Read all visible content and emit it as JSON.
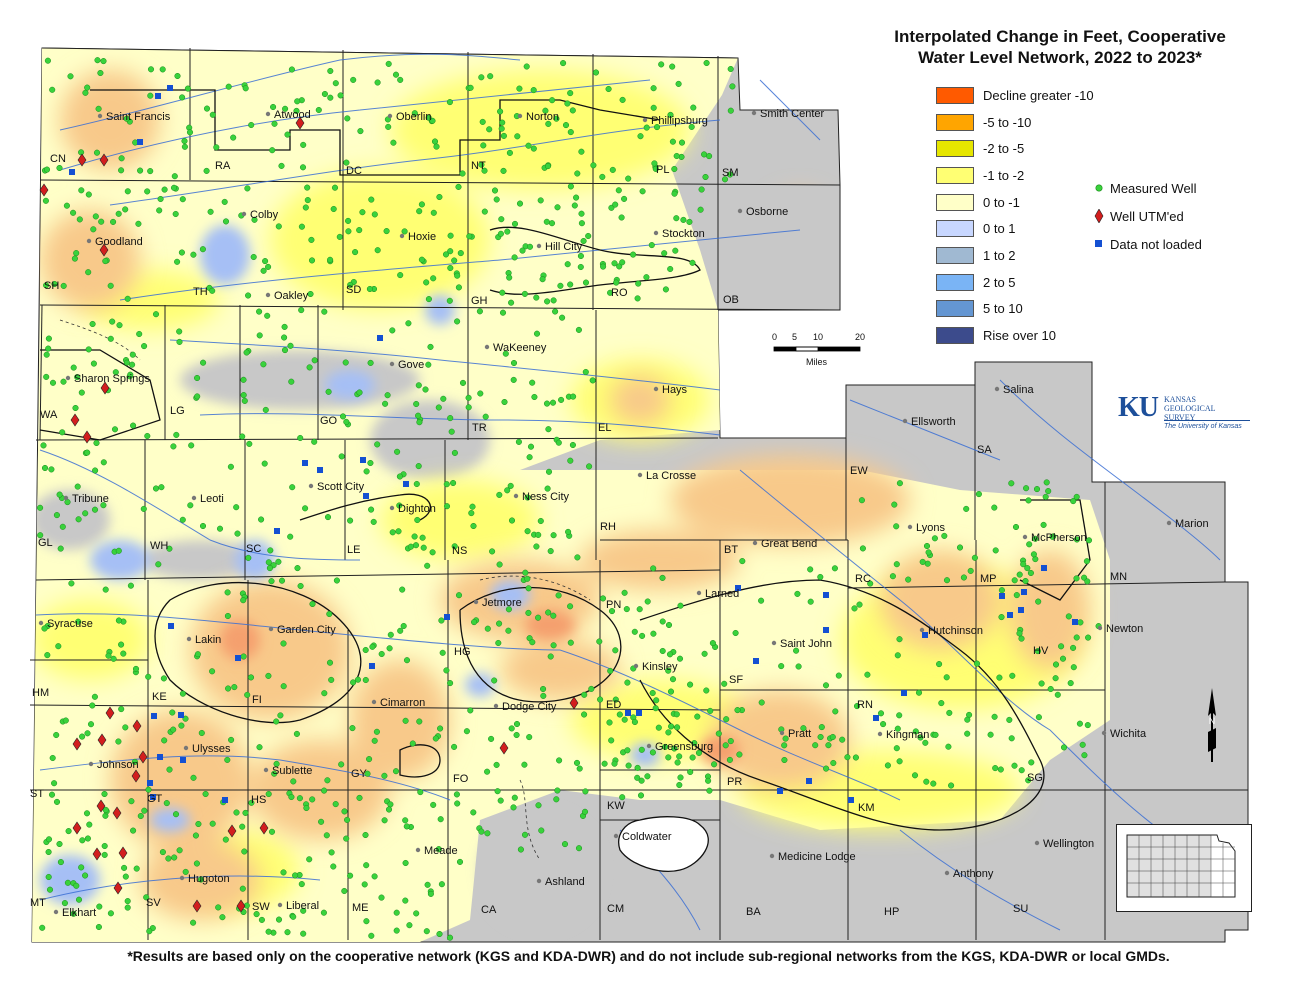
{
  "title_line1": "Interpolated Change in Feet, Cooperative",
  "title_line2": "Water Level Network, 2022 to 2023*",
  "legend": [
    {
      "label": "Decline greater -10",
      "color": "#ff5a00"
    },
    {
      "label": "-5 to -10",
      "color": "#ffa500"
    },
    {
      "label": "-2 to -5",
      "color": "#e6e600"
    },
    {
      "label": "-1 to -2",
      "color": "#ffff73"
    },
    {
      "label": "0 to -1",
      "color": "#ffffc8"
    },
    {
      "label": "0 to 1",
      "color": "#c8d7ff"
    },
    {
      "label": "1 to 2",
      "color": "#a0b9d2"
    },
    {
      "label": "2 to 5",
      "color": "#7ab4f5"
    },
    {
      "label": "5 to 10",
      "color": "#6496d2"
    },
    {
      "label": "Rise over 10",
      "color": "#3c4b8c"
    }
  ],
  "symbols": [
    {
      "label": "Measured Well",
      "icon": "green-dot-icon",
      "color": "#39d23c"
    },
    {
      "label": "Well UTM'ed",
      "icon": "red-diamond-icon",
      "color": "#d21e1e"
    },
    {
      "label": "Data not loaded",
      "icon": "blue-square-icon",
      "color": "#1450d2"
    }
  ],
  "scale": {
    "ticks": [
      "0",
      "5",
      "10",
      "20"
    ],
    "unit": "Miles"
  },
  "north_label": "N",
  "logo": {
    "big": "KU",
    "small1": "KANSAS",
    "small2": "GEOLOGICAL",
    "small3": "SURVEY",
    "uni": "The University of Kansas"
  },
  "footnote": "*Results are based only on the cooperative network (KGS and KDA-DWR) and do not include sub-regional networks from the KGS, KDA-DWR or local GMDs.",
  "cities": [
    "Saint Francis",
    "Atwood",
    "Oberlin",
    "Norton",
    "Phillipsburg",
    "Smith Center",
    "Goodland",
    "Colby",
    "Hoxie",
    "Hill City",
    "Stockton",
    "Osborne",
    "Oakley",
    "WaKeeney",
    "Gove",
    "Hays",
    "Sharon Springs",
    "Salina",
    "Ellsworth",
    "Tribune",
    "Leoti",
    "Scott City",
    "Dighton",
    "Ness City",
    "La Crosse",
    "Great Bend",
    "Lyons",
    "McPherson",
    "Marion",
    "Syracuse",
    "Lakin",
    "Garden City",
    "Jetmore",
    "Larned",
    "Saint John",
    "Hutchinson",
    "Newton",
    "Kinsley",
    "Cimarron",
    "Dodge City",
    "Pratt",
    "Kingman",
    "Wichita",
    "Ulysses",
    "Johnson",
    "Sublette",
    "Greensburg",
    "Coldwater",
    "Meade",
    "Ashland",
    "Medicine Lodge",
    "Anthony",
    "Wellington",
    "Hugoton",
    "Liberal",
    "Elkhart"
  ],
  "counties": [
    "CN",
    "RA",
    "DC",
    "NT",
    "PL",
    "SM",
    "SH",
    "TH",
    "SD",
    "GH",
    "RO",
    "OB",
    "WA",
    "LG",
    "GO",
    "TR",
    "EL",
    "SA",
    "EW",
    "GL",
    "WH",
    "SC",
    "LE",
    "NS",
    "RH",
    "BT",
    "RC",
    "MP",
    "MN",
    "HM",
    "KE",
    "FI",
    "HG",
    "PN",
    "ED",
    "SF",
    "RN",
    "HV",
    "ST",
    "GT",
    "HS",
    "GY",
    "FO",
    "KW",
    "PR",
    "KM",
    "SG",
    "MT",
    "SV",
    "SW",
    "ME",
    "CA",
    "CM",
    "BA",
    "HP",
    "SU"
  ]
}
